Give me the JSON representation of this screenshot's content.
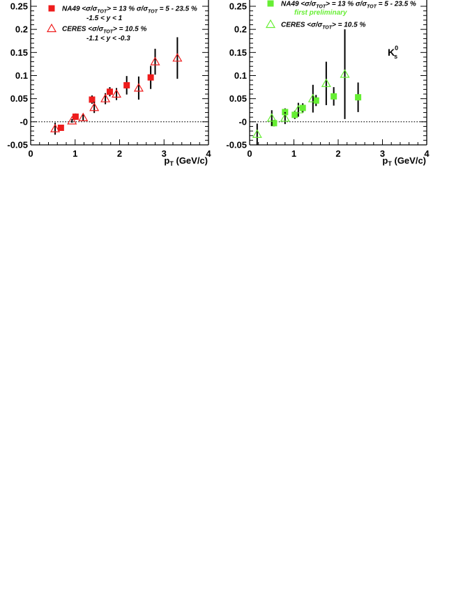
{
  "chart_data": [
    {
      "type": "scatter",
      "panel": "left",
      "xlabel": "p",
      "xlabel_sub": "T",
      "xlabel_unit": " (GeV/c)",
      "xlim": [
        0,
        4
      ],
      "ylim": [
        -0.05,
        0.25
      ],
      "x_ticks": [
        "0",
        "1",
        "2",
        "3",
        "4"
      ],
      "y_ticks": [
        "-0.05",
        "-0",
        "0.05",
        "0.1",
        "0.15",
        "0.2",
        "0.25"
      ],
      "zero_line": true,
      "legend_position": "top-left",
      "series": [
        {
          "name": "NA49",
          "marker": "filled-square",
          "color": "#ee1c1c",
          "points": [
            {
              "x": 0.68,
              "y": -0.013,
              "err": 0.006
            },
            {
              "x": 1.01,
              "y": 0.011,
              "err": 0.007
            },
            {
              "x": 1.38,
              "y": 0.048,
              "err": 0.009
            },
            {
              "x": 1.78,
              "y": 0.065,
              "err": 0.01
            },
            {
              "x": 2.16,
              "y": 0.079,
              "err": 0.02
            },
            {
              "x": 2.7,
              "y": 0.096,
              "err": 0.025
            }
          ]
        },
        {
          "name": "CERES",
          "marker": "open-triangle",
          "color": "#ee1c1c",
          "points": [
            {
              "x": 0.55,
              "y": -0.015,
              "err": 0.013
            },
            {
              "x": 0.93,
              "y": 0.002,
              "err": 0.004
            },
            {
              "x": 1.18,
              "y": 0.009,
              "err": 0.007
            },
            {
              "x": 1.43,
              "y": 0.031,
              "err": 0.012
            },
            {
              "x": 1.68,
              "y": 0.05,
              "err": 0.012
            },
            {
              "x": 1.93,
              "y": 0.06,
              "err": 0.013
            },
            {
              "x": 2.43,
              "y": 0.073,
              "err": 0.025
            },
            {
              "x": 2.8,
              "y": 0.13,
              "err": 0.028
            },
            {
              "x": 3.3,
              "y": 0.138,
              "err": 0.045
            }
          ]
        }
      ],
      "legend": [
        {
          "series": "NA49",
          "line1": "NA49  <σ/σ",
          "line1_sub": "TOT",
          "line1_mid": "> = 13 %  σ/σ",
          "line1_sub2": "TOT",
          "line1_end": " = 5 - 23.5 %",
          "line2": "-1.5 < y < 1"
        },
        {
          "series": "CERES",
          "line1": "CERES  <σ/σ",
          "line1_sub": "TOT",
          "line1_end": "> = 10.5 %",
          "line2": "-1.1 < y < -0.3"
        }
      ]
    },
    {
      "type": "scatter",
      "panel": "right",
      "xlabel": "p",
      "xlabel_sub": "T",
      "xlabel_unit": " (GeV/c)",
      "xlim": [
        0,
        4
      ],
      "ylim": [
        -0.05,
        0.25
      ],
      "x_ticks": [
        "0",
        "1",
        "2",
        "3",
        "4"
      ],
      "y_ticks": [
        "-0.05",
        "-0",
        "0.05",
        "0.1",
        "0.15",
        "0.2",
        "0.25"
      ],
      "zero_line": true,
      "legend_position": "top-left",
      "particle_label": "K",
      "particle_sup": "0",
      "particle_sub": "s",
      "note": "first preliminary",
      "note_color": "#66ee33",
      "series": [
        {
          "name": "NA49",
          "marker": "filled-square",
          "color": "#66ee33",
          "points": [
            {
              "x": 0.55,
              "y": -0.003,
              "err": 0.007
            },
            {
              "x": 0.8,
              "y": 0.021,
              "err": 0.008
            },
            {
              "x": 1.02,
              "y": 0.015,
              "err": 0.009
            },
            {
              "x": 1.2,
              "y": 0.03,
              "err": 0.01
            },
            {
              "x": 1.5,
              "y": 0.046,
              "err": 0.012
            },
            {
              "x": 1.9,
              "y": 0.055,
              "err": 0.02
            },
            {
              "x": 2.45,
              "y": 0.053,
              "err": 0.032
            }
          ]
        },
        {
          "name": "CERES",
          "marker": "open-triangle",
          "color": "#66ee33",
          "points": [
            {
              "x": 0.17,
              "y": -0.027,
              "err": 0.023
            },
            {
              "x": 0.5,
              "y": 0.008,
              "err": 0.017
            },
            {
              "x": 0.8,
              "y": 0.008,
              "err": 0.013
            },
            {
              "x": 1.1,
              "y": 0.026,
              "err": 0.015
            },
            {
              "x": 1.43,
              "y": 0.05,
              "err": 0.03
            },
            {
              "x": 1.73,
              "y": 0.083,
              "err": 0.047
            },
            {
              "x": 2.15,
              "y": 0.103,
              "err": 0.097
            }
          ]
        }
      ],
      "legend": [
        {
          "series": "NA49",
          "line1": "NA49  <σ/σ",
          "line1_sub": "TOT",
          "line1_mid": "> = 13 %  σ/σ",
          "line1_sub2": "TOT",
          "line1_end": " = 5 - 23.5 %"
        },
        {
          "series": "CERES",
          "line1": "CERES  <σ/σ",
          "line1_sub": "TOT",
          "line1_end": "> = 10.5 %"
        }
      ]
    }
  ]
}
